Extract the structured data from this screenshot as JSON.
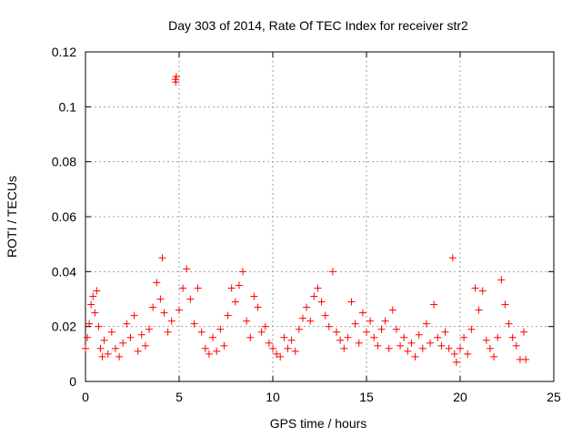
{
  "chart_data": {
    "type": "scatter",
    "title": "Day 303 of 2014, Rate Of TEC Index for receiver str2",
    "xlabel": "GPS time / hours",
    "ylabel": "ROTI / TECUs",
    "xlim": [
      0,
      25
    ],
    "ylim": [
      0,
      0.12
    ],
    "x_ticks": [
      0,
      5,
      10,
      15,
      20,
      25
    ],
    "x_tick_labels": [
      "0",
      "5",
      "10",
      "15",
      "20",
      "25"
    ],
    "y_ticks": [
      0,
      0.02,
      0.04,
      0.06,
      0.08,
      0.1,
      0.12
    ],
    "y_tick_labels": [
      "0",
      "0.02",
      "0.04",
      "0.06",
      "0.08",
      "0.1",
      "0.12"
    ],
    "grid": true,
    "marker": "plus",
    "color": "#ff0000",
    "series": [
      {
        "name": "ROTI",
        "points": [
          [
            0.0,
            0.012
          ],
          [
            0.1,
            0.016
          ],
          [
            0.2,
            0.021
          ],
          [
            0.3,
            0.028
          ],
          [
            0.4,
            0.031
          ],
          [
            0.5,
            0.025
          ],
          [
            0.6,
            0.033
          ],
          [
            0.7,
            0.02
          ],
          [
            0.8,
            0.012
          ],
          [
            0.9,
            0.009
          ],
          [
            1.0,
            0.015
          ],
          [
            1.2,
            0.01
          ],
          [
            1.4,
            0.018
          ],
          [
            1.6,
            0.012
          ],
          [
            1.8,
            0.009
          ],
          [
            2.0,
            0.014
          ],
          [
            2.2,
            0.021
          ],
          [
            2.4,
            0.016
          ],
          [
            2.6,
            0.024
          ],
          [
            2.8,
            0.011
          ],
          [
            3.0,
            0.017
          ],
          [
            3.2,
            0.013
          ],
          [
            3.4,
            0.019
          ],
          [
            3.6,
            0.027
          ],
          [
            3.8,
            0.036
          ],
          [
            4.0,
            0.03
          ],
          [
            4.1,
            0.045
          ],
          [
            4.2,
            0.025
          ],
          [
            4.4,
            0.018
          ],
          [
            4.6,
            0.022
          ],
          [
            4.8,
            0.11
          ],
          [
            4.82,
            0.109
          ],
          [
            4.85,
            0.111
          ],
          [
            5.0,
            0.026
          ],
          [
            5.2,
            0.034
          ],
          [
            5.4,
            0.041
          ],
          [
            5.6,
            0.03
          ],
          [
            5.8,
            0.021
          ],
          [
            6.0,
            0.034
          ],
          [
            6.2,
            0.018
          ],
          [
            6.4,
            0.012
          ],
          [
            6.6,
            0.01
          ],
          [
            6.8,
            0.016
          ],
          [
            7.0,
            0.011
          ],
          [
            7.2,
            0.019
          ],
          [
            7.4,
            0.013
          ],
          [
            7.6,
            0.024
          ],
          [
            7.8,
            0.034
          ],
          [
            8.0,
            0.029
          ],
          [
            8.2,
            0.035
          ],
          [
            8.4,
            0.04
          ],
          [
            8.6,
            0.022
          ],
          [
            8.8,
            0.016
          ],
          [
            9.0,
            0.031
          ],
          [
            9.2,
            0.027
          ],
          [
            9.4,
            0.018
          ],
          [
            9.6,
            0.02
          ],
          [
            9.8,
            0.014
          ],
          [
            10.0,
            0.012
          ],
          [
            10.2,
            0.01
          ],
          [
            10.4,
            0.009
          ],
          [
            10.6,
            0.016
          ],
          [
            10.8,
            0.012
          ],
          [
            11.0,
            0.015
          ],
          [
            11.2,
            0.011
          ],
          [
            11.4,
            0.019
          ],
          [
            11.6,
            0.023
          ],
          [
            11.8,
            0.027
          ],
          [
            12.0,
            0.022
          ],
          [
            12.2,
            0.031
          ],
          [
            12.4,
            0.034
          ],
          [
            12.6,
            0.029
          ],
          [
            12.8,
            0.024
          ],
          [
            13.0,
            0.02
          ],
          [
            13.2,
            0.04
          ],
          [
            13.4,
            0.018
          ],
          [
            13.6,
            0.015
          ],
          [
            13.8,
            0.012
          ],
          [
            14.0,
            0.016
          ],
          [
            14.2,
            0.029
          ],
          [
            14.4,
            0.021
          ],
          [
            14.6,
            0.014
          ],
          [
            14.8,
            0.025
          ],
          [
            15.0,
            0.018
          ],
          [
            15.2,
            0.022
          ],
          [
            15.4,
            0.016
          ],
          [
            15.6,
            0.013
          ],
          [
            15.8,
            0.019
          ],
          [
            16.0,
            0.022
          ],
          [
            16.2,
            0.012
          ],
          [
            16.4,
            0.026
          ],
          [
            16.6,
            0.019
          ],
          [
            16.8,
            0.013
          ],
          [
            17.0,
            0.016
          ],
          [
            17.2,
            0.011
          ],
          [
            17.4,
            0.014
          ],
          [
            17.6,
            0.009
          ],
          [
            17.8,
            0.017
          ],
          [
            18.0,
            0.012
          ],
          [
            18.2,
            0.021
          ],
          [
            18.4,
            0.014
          ],
          [
            18.6,
            0.028
          ],
          [
            18.8,
            0.016
          ],
          [
            19.0,
            0.013
          ],
          [
            19.2,
            0.018
          ],
          [
            19.4,
            0.012
          ],
          [
            19.6,
            0.045
          ],
          [
            19.7,
            0.01
          ],
          [
            19.8,
            0.007
          ],
          [
            20.0,
            0.012
          ],
          [
            20.2,
            0.016
          ],
          [
            20.4,
            0.01
          ],
          [
            20.6,
            0.019
          ],
          [
            20.8,
            0.034
          ],
          [
            21.0,
            0.026
          ],
          [
            21.2,
            0.033
          ],
          [
            21.4,
            0.015
          ],
          [
            21.6,
            0.012
          ],
          [
            21.8,
            0.009
          ],
          [
            22.0,
            0.016
          ],
          [
            22.2,
            0.037
          ],
          [
            22.4,
            0.028
          ],
          [
            22.6,
            0.021
          ],
          [
            22.8,
            0.016
          ],
          [
            23.0,
            0.013
          ],
          [
            23.2,
            0.008
          ],
          [
            23.4,
            0.018
          ],
          [
            23.5,
            0.008
          ]
        ]
      }
    ]
  }
}
